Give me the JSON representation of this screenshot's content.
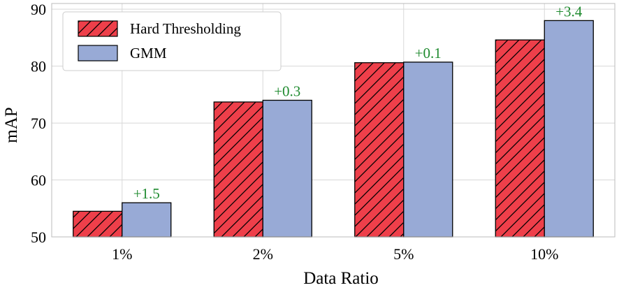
{
  "colors": {
    "hard_thresholding": "#ee3f4a",
    "gmm": "#98aad6",
    "delta": "#1e8a2e",
    "grid": "#d8d8d8",
    "frame": "#bbbbbb"
  },
  "chart_data": {
    "type": "bar",
    "title": "",
    "xlabel": "Data Ratio",
    "ylabel": "mAP",
    "ylim": [
      50,
      91
    ],
    "yticks": [
      50,
      60,
      70,
      80,
      90
    ],
    "categories": [
      "1%",
      "2%",
      "5%",
      "10%"
    ],
    "series": [
      {
        "name": "Hard Thresholding",
        "values": [
          54.5,
          73.7,
          80.6,
          84.6
        ],
        "hatch": "diagonal"
      },
      {
        "name": "GMM",
        "values": [
          56.0,
          74.0,
          80.7,
          88.0
        ],
        "hatch": "none"
      }
    ],
    "annotations": [
      "+1.5",
      "+0.3",
      "+0.1",
      "+3.4"
    ],
    "legend_position": "top-left",
    "grid": true
  }
}
